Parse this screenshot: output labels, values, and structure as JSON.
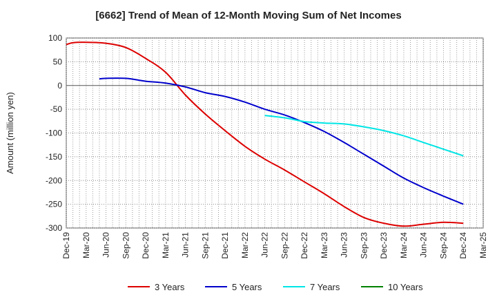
{
  "chart_data": {
    "type": "line",
    "title": "[6662]  Trend of Mean of 12-Month Moving Sum of Net Incomes",
    "ylabel": "Amount (million yen)",
    "xlabel": "",
    "ylim": [
      -300,
      100
    ],
    "yticks": [
      100,
      50,
      0,
      -50,
      -100,
      -150,
      -200,
      -250,
      -300
    ],
    "x_categories": [
      "Dec-19",
      "Mar-20",
      "Jun-20",
      "Sep-20",
      "Dec-20",
      "Mar-21",
      "Jun-21",
      "Sep-21",
      "Dec-21",
      "Mar-22",
      "Jun-22",
      "Sep-22",
      "Dec-22",
      "Mar-23",
      "Jun-23",
      "Sep-23",
      "Dec-23",
      "Mar-24",
      "Jun-24",
      "Sep-24",
      "Dec-24",
      "Mar-25"
    ],
    "grid": true,
    "legend_position": "bottom",
    "series": [
      {
        "name": "3 Years",
        "color": "#dd0000",
        "points": [
          [
            "Dec-19",
            86
          ],
          [
            "Jan-20",
            90
          ],
          [
            "Mar-20",
            91
          ],
          [
            "Jun-20",
            89
          ],
          [
            "Sep-20",
            80
          ],
          [
            "Dec-20",
            57
          ],
          [
            "Mar-21",
            28
          ],
          [
            "Jun-21",
            -20
          ],
          [
            "Sep-21",
            -60
          ],
          [
            "Dec-21",
            -95
          ],
          [
            "Mar-22",
            -128
          ],
          [
            "Jun-22",
            -155
          ],
          [
            "Sep-22",
            -178
          ],
          [
            "Dec-22",
            -203
          ],
          [
            "Mar-23",
            -228
          ],
          [
            "Jun-23",
            -255
          ],
          [
            "Sep-23",
            -278
          ],
          [
            "Dec-23",
            -290
          ],
          [
            "Mar-24",
            -296
          ],
          [
            "Jun-24",
            -292
          ],
          [
            "Sep-24",
            -288
          ],
          [
            "Dec-24",
            -290
          ]
        ]
      },
      {
        "name": "5 Years",
        "color": "#0000cc",
        "points": [
          [
            "May-20",
            14
          ],
          [
            "Jun-20",
            15
          ],
          [
            "Sep-20",
            15
          ],
          [
            "Dec-20",
            9
          ],
          [
            "Mar-21",
            5
          ],
          [
            "Jun-21",
            -3
          ],
          [
            "Sep-21",
            -15
          ],
          [
            "Dec-21",
            -23
          ],
          [
            "Mar-22",
            -35
          ],
          [
            "Jun-22",
            -50
          ],
          [
            "Sep-22",
            -62
          ],
          [
            "Dec-22",
            -78
          ],
          [
            "Mar-23",
            -97
          ],
          [
            "Jun-23",
            -120
          ],
          [
            "Sep-23",
            -145
          ],
          [
            "Dec-23",
            -170
          ],
          [
            "Mar-24",
            -195
          ],
          [
            "Jun-24",
            -215
          ],
          [
            "Sep-24",
            -233
          ],
          [
            "Dec-24",
            -250
          ]
        ]
      },
      {
        "name": "7 Years",
        "color": "#00e5e5",
        "points": [
          [
            "Jun-22",
            -63
          ],
          [
            "Sep-22",
            -68
          ],
          [
            "Dec-22",
            -76
          ],
          [
            "Mar-23",
            -79
          ],
          [
            "Jun-23",
            -81
          ],
          [
            "Sep-23",
            -87
          ],
          [
            "Dec-23",
            -95
          ],
          [
            "Mar-24",
            -106
          ],
          [
            "Jun-24",
            -120
          ],
          [
            "Sep-24",
            -134
          ],
          [
            "Dec-24",
            -148
          ]
        ]
      },
      {
        "name": "10 Years",
        "color": "#008000",
        "points": []
      }
    ]
  }
}
